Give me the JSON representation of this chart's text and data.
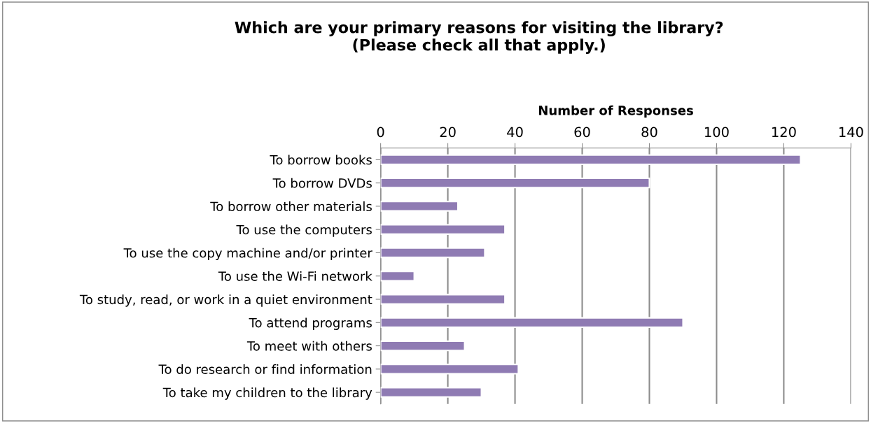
{
  "chart_data": {
    "type": "bar",
    "orientation": "horizontal",
    "title": "Which are your primary reasons for visiting the library?\n(Please check all that apply.)",
    "xlabel": "Number of Responses",
    "categories": [
      "To borrow books",
      "To borrow DVDs",
      "To borrow other materials",
      "To use the computers",
      "To use the copy machine and/or printer",
      "To use the Wi-Fi network",
      "To study, read, or work in a quiet environment",
      "To attend programs",
      "To meet with others",
      "To do research or find information",
      "To take my children to the library"
    ],
    "values": [
      125,
      80,
      23,
      37,
      31,
      10,
      37,
      90,
      25,
      41,
      30
    ],
    "color": "#8f7bb3",
    "xlim": [
      0,
      140
    ],
    "xticks": [
      0,
      20,
      40,
      60,
      80,
      100,
      120,
      140
    ],
    "grid": "x",
    "legend": false
  }
}
